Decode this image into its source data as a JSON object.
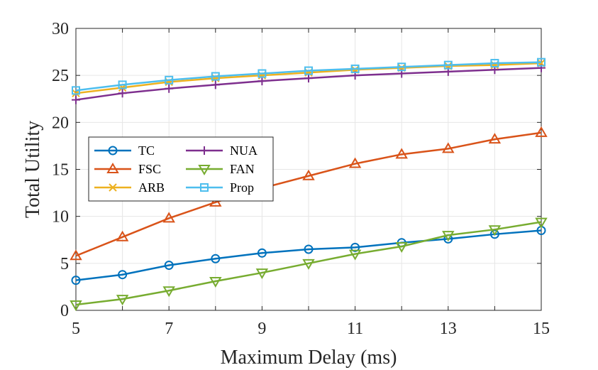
{
  "chart_data": {
    "type": "line",
    "title": "",
    "xlabel": "Maximum Delay (ms)",
    "ylabel": "Total Utility",
    "xlim": [
      5,
      15
    ],
    "ylim": [
      0,
      30
    ],
    "grid": true,
    "legend_position": "middle-left",
    "legend_columns": 2,
    "xticks": [
      5,
      7,
      9,
      11,
      13,
      15
    ],
    "yticks": [
      0,
      5,
      10,
      15,
      20,
      25,
      30
    ],
    "x": [
      5,
      6,
      7,
      8,
      9,
      10,
      11,
      12,
      13,
      14,
      15
    ],
    "series": [
      {
        "name": "TC",
        "color": "#0072BD",
        "marker": "circle",
        "values": [
          3.2,
          3.8,
          4.8,
          5.5,
          6.1,
          6.5,
          6.7,
          7.2,
          7.6,
          8.1,
          8.5
        ]
      },
      {
        "name": "FSC",
        "color": "#D95319",
        "marker": "triangle-up",
        "values": [
          5.8,
          7.8,
          9.8,
          11.5,
          13.0,
          14.3,
          15.6,
          16.6,
          17.2,
          18.2,
          18.9
        ]
      },
      {
        "name": "ARB",
        "color": "#EDB120",
        "marker": "x",
        "values": [
          23.1,
          23.7,
          24.3,
          24.7,
          25.0,
          25.3,
          25.6,
          25.8,
          26.0,
          26.1,
          26.3
        ]
      },
      {
        "name": "NUA",
        "color": "#7E2F8E",
        "marker": "plus",
        "values": [
          22.4,
          23.1,
          23.6,
          24.0,
          24.4,
          24.7,
          25.0,
          25.2,
          25.4,
          25.6,
          25.8
        ]
      },
      {
        "name": "FAN",
        "color": "#77AC30",
        "marker": "triangle-down",
        "values": [
          0.6,
          1.2,
          2.1,
          3.1,
          4.0,
          5.0,
          6.0,
          6.8,
          8.0,
          8.6,
          9.4
        ]
      },
      {
        "name": "Prop",
        "color": "#4DBEEE",
        "marker": "square",
        "values": [
          23.4,
          24.0,
          24.5,
          24.9,
          25.2,
          25.5,
          25.7,
          25.9,
          26.1,
          26.3,
          26.4
        ]
      }
    ]
  }
}
